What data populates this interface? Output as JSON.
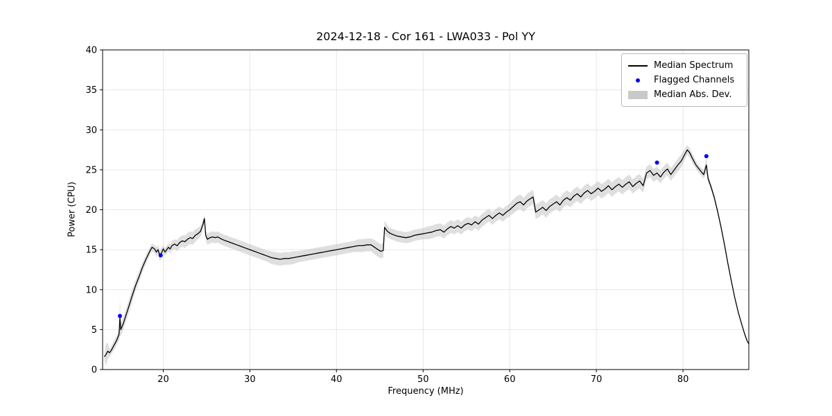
{
  "figure": {
    "title": "2024-12-18 - Cor 161 - LWA033 - Pol YY",
    "xlabel": "Frequency (MHz)",
    "ylabel": "Power (CPU)",
    "legend": {
      "median_label": "Median Spectrum",
      "flagged_label": "Flagged Channels",
      "mad_label": "Median Abs. Dev."
    }
  },
  "colors": {
    "line": "#000000",
    "flagged": "#0000ff",
    "band": "#c4c4c4",
    "grid": "#e6e6e6",
    "spine": "#000000"
  },
  "chart_data": {
    "type": "line",
    "title": "2024-12-18 - Cor 161 - LWA033 - Pol YY",
    "xlabel": "Frequency (MHz)",
    "ylabel": "Power (CPU)",
    "xlim": [
      13.0,
      87.6
    ],
    "ylim": [
      0,
      40
    ],
    "x_ticks": [
      20,
      30,
      40,
      50,
      60,
      70,
      80
    ],
    "y_ticks": [
      0,
      5,
      10,
      15,
      20,
      25,
      30,
      35,
      40
    ],
    "grid": true,
    "legend_position": "upper right",
    "point_format": "[freq_MHz, power_CPU, median_abs_dev]",
    "series": [
      {
        "name": "Median Spectrum",
        "type": "line",
        "color": "#000000",
        "points": [
          [
            13.2,
            1.6,
            0.4
          ],
          [
            13.4,
            1.9,
            1.4
          ],
          [
            13.6,
            2.3,
            1.0
          ],
          [
            13.8,
            2.1,
            0.5
          ],
          [
            14.0,
            2.4,
            0.5
          ],
          [
            14.3,
            3.0,
            0.6
          ],
          [
            14.6,
            3.6,
            0.6
          ],
          [
            14.9,
            4.4,
            0.7
          ],
          [
            15.0,
            6.5,
            2.4
          ],
          [
            15.1,
            5.0,
            0.8
          ],
          [
            15.4,
            5.8,
            0.8
          ],
          [
            15.7,
            6.8,
            0.8
          ],
          [
            16.0,
            7.8,
            0.8
          ],
          [
            16.4,
            9.2,
            0.8
          ],
          [
            16.8,
            10.5,
            0.7
          ],
          [
            17.2,
            11.6,
            0.7
          ],
          [
            17.6,
            12.8,
            0.6
          ],
          [
            18.0,
            13.8,
            0.6
          ],
          [
            18.4,
            14.7,
            0.5
          ],
          [
            18.7,
            15.3,
            0.5
          ],
          [
            19.0,
            15.1,
            0.5
          ],
          [
            19.2,
            14.7,
            0.6
          ],
          [
            19.4,
            15.0,
            0.6
          ],
          [
            19.6,
            14.2,
            0.7
          ],
          [
            19.8,
            14.6,
            0.6
          ],
          [
            20.0,
            15.1,
            0.5
          ],
          [
            20.2,
            14.7,
            0.5
          ],
          [
            20.4,
            15.0,
            0.5
          ],
          [
            20.6,
            15.3,
            0.5
          ],
          [
            20.8,
            15.1,
            0.6
          ],
          [
            21.0,
            15.5,
            0.6
          ],
          [
            21.3,
            15.7,
            0.6
          ],
          [
            21.6,
            15.5,
            0.7
          ],
          [
            21.9,
            15.9,
            0.7
          ],
          [
            22.2,
            16.1,
            0.7
          ],
          [
            22.5,
            16.0,
            0.8
          ],
          [
            22.8,
            16.3,
            0.8
          ],
          [
            23.1,
            16.5,
            0.8
          ],
          [
            23.4,
            16.4,
            0.8
          ],
          [
            23.7,
            16.8,
            0.8
          ],
          [
            24.0,
            17.0,
            0.7
          ],
          [
            24.3,
            17.3,
            0.7
          ],
          [
            24.6,
            18.2,
            0.6
          ],
          [
            24.75,
            18.9,
            0.5
          ],
          [
            24.9,
            16.8,
            0.6
          ],
          [
            25.1,
            16.3,
            0.7
          ],
          [
            25.4,
            16.5,
            0.7
          ],
          [
            25.7,
            16.6,
            0.7
          ],
          [
            26.0,
            16.5,
            0.7
          ],
          [
            26.3,
            16.6,
            0.7
          ],
          [
            26.6,
            16.4,
            0.7
          ],
          [
            27.0,
            16.2,
            0.7
          ],
          [
            27.5,
            16.0,
            0.7
          ],
          [
            28.0,
            15.8,
            0.7
          ],
          [
            28.5,
            15.6,
            0.7
          ],
          [
            29.0,
            15.4,
            0.7
          ],
          [
            29.5,
            15.2,
            0.7
          ],
          [
            30.0,
            15.0,
            0.7
          ],
          [
            30.5,
            14.8,
            0.7
          ],
          [
            31.0,
            14.6,
            0.7
          ],
          [
            31.5,
            14.4,
            0.7
          ],
          [
            32.0,
            14.2,
            0.7
          ],
          [
            32.5,
            14.0,
            0.8
          ],
          [
            33.0,
            13.9,
            0.8
          ],
          [
            33.5,
            13.8,
            0.8
          ],
          [
            34.0,
            13.9,
            0.8
          ],
          [
            34.5,
            13.9,
            0.8
          ],
          [
            35.0,
            14.0,
            0.8
          ],
          [
            35.5,
            14.1,
            0.7
          ],
          [
            36.0,
            14.2,
            0.7
          ],
          [
            36.5,
            14.3,
            0.7
          ],
          [
            37.0,
            14.4,
            0.7
          ],
          [
            37.5,
            14.5,
            0.7
          ],
          [
            38.0,
            14.6,
            0.7
          ],
          [
            38.5,
            14.7,
            0.7
          ],
          [
            39.0,
            14.8,
            0.7
          ],
          [
            39.5,
            14.9,
            0.7
          ],
          [
            40.0,
            15.0,
            0.7
          ],
          [
            40.5,
            15.1,
            0.7
          ],
          [
            41.0,
            15.2,
            0.7
          ],
          [
            41.5,
            15.3,
            0.7
          ],
          [
            42.0,
            15.4,
            0.7
          ],
          [
            42.5,
            15.5,
            0.8
          ],
          [
            43.0,
            15.5,
            0.8
          ],
          [
            43.5,
            15.6,
            0.8
          ],
          [
            44.0,
            15.6,
            0.8
          ],
          [
            44.4,
            15.3,
            0.9
          ],
          [
            44.8,
            15.0,
            0.9
          ],
          [
            45.1,
            14.8,
            0.9
          ],
          [
            45.4,
            14.9,
            0.9
          ],
          [
            45.55,
            17.8,
            0.8
          ],
          [
            45.8,
            17.4,
            0.8
          ],
          [
            46.1,
            17.1,
            0.7
          ],
          [
            46.5,
            16.9,
            0.7
          ],
          [
            47.0,
            16.7,
            0.7
          ],
          [
            47.5,
            16.6,
            0.7
          ],
          [
            48.0,
            16.5,
            0.7
          ],
          [
            48.5,
            16.6,
            0.7
          ],
          [
            49.0,
            16.8,
            0.7
          ],
          [
            49.5,
            16.9,
            0.7
          ],
          [
            50.0,
            17.0,
            0.7
          ],
          [
            50.5,
            17.1,
            0.8
          ],
          [
            51.0,
            17.2,
            0.8
          ],
          [
            51.5,
            17.4,
            0.8
          ],
          [
            52.0,
            17.5,
            0.8
          ],
          [
            52.4,
            17.2,
            0.8
          ],
          [
            52.8,
            17.6,
            0.8
          ],
          [
            53.2,
            17.9,
            0.8
          ],
          [
            53.6,
            17.7,
            0.8
          ],
          [
            54.0,
            18.0,
            0.8
          ],
          [
            54.4,
            17.7,
            0.8
          ],
          [
            54.8,
            18.1,
            0.8
          ],
          [
            55.2,
            18.3,
            0.8
          ],
          [
            55.6,
            18.1,
            0.8
          ],
          [
            56.0,
            18.5,
            0.8
          ],
          [
            56.4,
            18.2,
            0.8
          ],
          [
            56.8,
            18.7,
            0.8
          ],
          [
            57.2,
            19.0,
            0.8
          ],
          [
            57.6,
            19.3,
            0.8
          ],
          [
            58.0,
            18.9,
            0.8
          ],
          [
            58.4,
            19.3,
            0.8
          ],
          [
            58.8,
            19.6,
            0.8
          ],
          [
            59.2,
            19.3,
            0.8
          ],
          [
            59.6,
            19.7,
            0.8
          ],
          [
            60.0,
            20.0,
            0.8
          ],
          [
            60.4,
            20.4,
            0.9
          ],
          [
            60.8,
            20.8,
            0.9
          ],
          [
            61.2,
            21.0,
            0.9
          ],
          [
            61.6,
            20.6,
            0.9
          ],
          [
            62.0,
            21.1,
            0.9
          ],
          [
            62.4,
            21.4,
            0.9
          ],
          [
            62.7,
            21.6,
            0.9
          ],
          [
            63.0,
            19.7,
            0.9
          ],
          [
            63.4,
            20.0,
            0.9
          ],
          [
            63.8,
            20.3,
            0.9
          ],
          [
            64.2,
            19.9,
            0.9
          ],
          [
            64.6,
            20.4,
            0.9
          ],
          [
            65.0,
            20.7,
            0.9
          ],
          [
            65.4,
            21.0,
            0.9
          ],
          [
            65.8,
            20.6,
            0.9
          ],
          [
            66.2,
            21.2,
            0.9
          ],
          [
            66.6,
            21.5,
            0.9
          ],
          [
            67.0,
            21.2,
            0.9
          ],
          [
            67.4,
            21.7,
            0.9
          ],
          [
            67.8,
            22.0,
            0.9
          ],
          [
            68.2,
            21.6,
            0.9
          ],
          [
            68.6,
            22.1,
            0.9
          ],
          [
            69.0,
            22.4,
            0.9
          ],
          [
            69.4,
            22.0,
            0.9
          ],
          [
            69.8,
            22.3,
            0.9
          ],
          [
            70.2,
            22.7,
            0.9
          ],
          [
            70.6,
            22.3,
            0.9
          ],
          [
            71.0,
            22.6,
            0.9
          ],
          [
            71.4,
            23.0,
            0.9
          ],
          [
            71.8,
            22.5,
            0.9
          ],
          [
            72.2,
            22.9,
            0.9
          ],
          [
            72.6,
            23.2,
            0.9
          ],
          [
            73.0,
            22.8,
            0.9
          ],
          [
            73.4,
            23.2,
            0.9
          ],
          [
            73.8,
            23.5,
            0.9
          ],
          [
            74.2,
            22.9,
            0.9
          ],
          [
            74.6,
            23.3,
            0.9
          ],
          [
            75.0,
            23.6,
            0.9
          ],
          [
            75.4,
            23.0,
            0.9
          ],
          [
            75.8,
            24.6,
            0.8
          ],
          [
            76.2,
            24.9,
            0.8
          ],
          [
            76.6,
            24.3,
            0.8
          ],
          [
            77.0,
            24.6,
            0.8
          ],
          [
            77.4,
            24.1,
            0.8
          ],
          [
            77.8,
            24.7,
            0.8
          ],
          [
            78.2,
            25.1,
            0.8
          ],
          [
            78.6,
            24.4,
            0.8
          ],
          [
            79.0,
            25.0,
            0.8
          ],
          [
            79.4,
            25.6,
            0.8
          ],
          [
            79.8,
            26.1,
            0.8
          ],
          [
            80.2,
            26.9,
            0.7
          ],
          [
            80.5,
            27.5,
            0.6
          ],
          [
            80.8,
            27.1,
            0.6
          ],
          [
            81.1,
            26.4,
            0.6
          ],
          [
            81.5,
            25.6,
            0.5
          ],
          [
            82.0,
            24.9,
            0.5
          ],
          [
            82.4,
            24.4,
            0.5
          ],
          [
            82.7,
            25.6,
            1.0
          ],
          [
            82.9,
            23.9,
            0.5
          ],
          [
            83.2,
            23.0,
            0.4
          ],
          [
            83.6,
            21.6,
            0.4
          ],
          [
            84.0,
            19.8,
            0.3
          ],
          [
            84.4,
            17.8,
            0.3
          ],
          [
            84.8,
            15.6,
            0.3
          ],
          [
            85.2,
            13.2,
            0.3
          ],
          [
            85.6,
            11.0,
            0.2
          ],
          [
            86.0,
            8.9,
            0.2
          ],
          [
            86.4,
            7.1,
            0.2
          ],
          [
            86.8,
            5.6,
            0.2
          ],
          [
            87.1,
            4.5,
            0.15
          ],
          [
            87.4,
            3.6,
            0.1
          ],
          [
            87.6,
            3.2,
            0.1
          ]
        ]
      },
      {
        "name": "Flagged Channels",
        "type": "scatter",
        "color": "#0000ff",
        "points": [
          [
            15.0,
            6.7
          ],
          [
            19.7,
            14.3
          ],
          [
            77.0,
            25.9
          ],
          [
            82.7,
            26.7
          ]
        ]
      }
    ]
  }
}
